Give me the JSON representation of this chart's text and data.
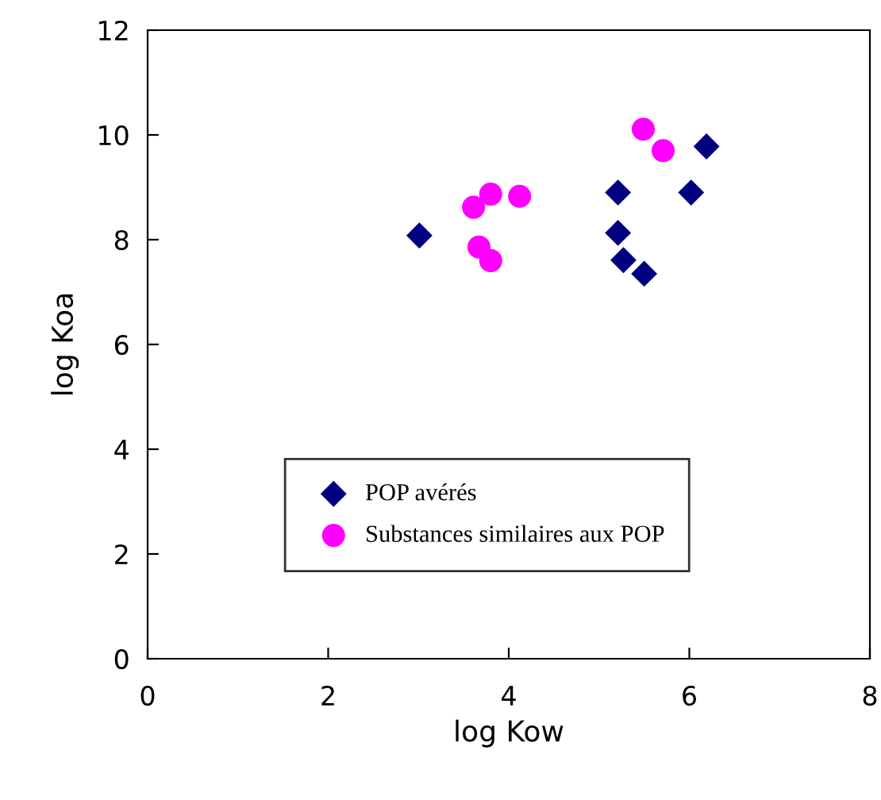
{
  "chart_data": {
    "type": "scatter",
    "xlabel": "log Kow",
    "ylabel": "log Koa",
    "xlim": [
      0,
      8
    ],
    "ylim": [
      0,
      12
    ],
    "xticks": [
      0,
      2,
      4,
      6,
      8
    ],
    "yticks": [
      0,
      2,
      4,
      6,
      8,
      10,
      12
    ],
    "grid": false,
    "legend": "bottom",
    "series": [
      {
        "name": "POP avérés",
        "color": "#000080",
        "marker": "diamond",
        "x": [
          3.01,
          5.21,
          5.21,
          5.27,
          5.5,
          6.02,
          6.19
        ],
        "values": [
          8.08,
          8.9,
          8.13,
          7.61,
          7.35,
          8.9,
          9.78
        ]
      },
      {
        "name": "Substances similaires aux POP",
        "color": "#ff00ff",
        "marker": "circle",
        "x": [
          5.49,
          5.71,
          3.61,
          3.8,
          4.12,
          3.67,
          3.8
        ],
        "values": [
          10.11,
          9.7,
          8.62,
          8.87,
          8.83,
          7.86,
          7.6
        ]
      }
    ]
  }
}
